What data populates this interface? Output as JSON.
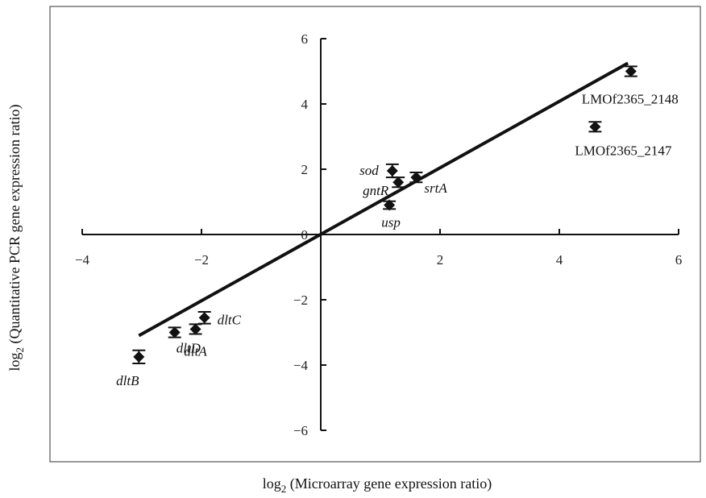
{
  "chart_data": {
    "type": "scatter",
    "xlabel": "log",
    "xlabel_sub": "2",
    "xlabel_rest": " (Microarray gene expression ratio)",
    "ylabel": "log",
    "ylabel_sub": "2",
    "ylabel_rest": " (Quantitative PCR gene expression ratio)",
    "xlim": [
      -4,
      6
    ],
    "ylim": [
      -6,
      6
    ],
    "x_ticks": [
      -4,
      -2,
      0,
      2,
      4,
      6
    ],
    "y_ticks": [
      -6,
      -4,
      -2,
      0,
      2,
      4,
      6
    ],
    "x_tick_labels": [
      "−4",
      "−2",
      "0",
      "2",
      "4",
      "6"
    ],
    "y_tick_labels": [
      "−6",
      "−4",
      "−2",
      "0",
      "2",
      "4",
      "6"
    ],
    "grid": false,
    "points": [
      {
        "label": "LMOf2365_2148",
        "italic": false,
        "x": 5.2,
        "y": 5.0,
        "err": 0.15
      },
      {
        "label": "LMOf2365_2147",
        "italic": false,
        "x": 4.6,
        "y": 3.3,
        "err": 0.15
      },
      {
        "label": "sod",
        "italic": true,
        "x": 1.2,
        "y": 1.95,
        "err": 0.2
      },
      {
        "label": "gntR",
        "italic": true,
        "x": 1.3,
        "y": 1.6,
        "err": 0.15
      },
      {
        "label": "srtA",
        "italic": true,
        "x": 1.6,
        "y": 1.75,
        "err": 0.15
      },
      {
        "label": "usp",
        "italic": true,
        "x": 1.15,
        "y": 0.9,
        "err": 0.12
      },
      {
        "label": "dltC",
        "italic": true,
        "x": -1.95,
        "y": -2.55,
        "err": 0.18
      },
      {
        "label": "dltA",
        "italic": true,
        "x": -2.1,
        "y": -2.9,
        "err": 0.15
      },
      {
        "label": "dltD",
        "italic": true,
        "x": -2.45,
        "y": -3.0,
        "err": 0.15
      },
      {
        "label": "dltB",
        "italic": true,
        "x": -3.05,
        "y": -3.75,
        "err": 0.2
      }
    ],
    "fit_line": {
      "x": [
        -3.05,
        5.15
      ],
      "y": [
        -3.1,
        5.25
      ]
    }
  }
}
